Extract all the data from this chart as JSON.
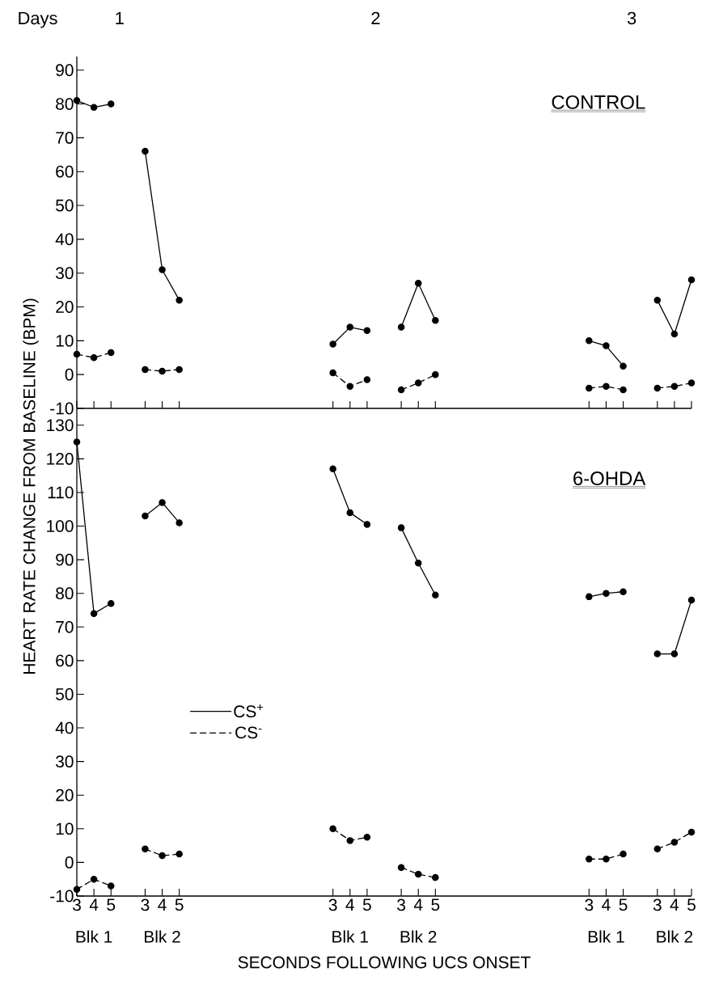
{
  "chart_data": [
    {
      "type": "line",
      "title": "CONTROL",
      "categories": [
        "3",
        "4",
        "5",
        null,
        "3",
        "4",
        "5",
        null,
        null,
        null,
        null,
        null,
        null,
        null,
        null,
        "3",
        "4",
        "5",
        null,
        "3",
        "4",
        "5",
        null,
        null,
        null,
        null,
        null,
        null,
        null,
        null,
        "3",
        "4",
        "5",
        null,
        "3",
        "4",
        "5"
      ],
      "series": [
        {
          "color": "#000000",
          "line_style": "solid",
          "values": [
            81,
            79,
            80,
            null,
            66,
            31,
            22,
            null,
            null,
            null,
            null,
            null,
            null,
            null,
            null,
            9,
            14,
            13,
            null,
            14,
            27,
            16,
            null,
            null,
            null,
            null,
            null,
            null,
            null,
            null,
            10,
            8.5,
            2.5,
            null,
            22,
            12,
            28
          ]
        },
        {
          "color": "#000000",
          "line_style": "dashed",
          "values": [
            6,
            5,
            6.5,
            null,
            1.5,
            1,
            1.5,
            null,
            null,
            null,
            null,
            null,
            null,
            null,
            null,
            0.5,
            -3.5,
            -1.5,
            null,
            -4.5,
            -2.5,
            0,
            null,
            null,
            null,
            null,
            null,
            null,
            null,
            null,
            -4,
            -3.5,
            -4.5,
            null,
            -4,
            -3.5,
            -2.5
          ]
        }
      ],
      "ylim": [
        -10,
        94
      ],
      "yticks": [
        -10,
        0,
        10,
        20,
        30,
        40,
        50,
        60,
        70,
        80,
        90
      ],
      "marker": "circle",
      "tick_labels": "y",
      "annotations": [
        "Days",
        "1",
        "2",
        "3"
      ]
    },
    {
      "type": "line",
      "title": "6-OHDA",
      "xlabel": "SECONDS FOLLOWING UCS ONSET",
      "ylabel": "HEART RATE CHANGE FROM BASELINE (BPM)",
      "categories": [
        "3",
        "4",
        "5",
        null,
        "3",
        "4",
        "5",
        null,
        null,
        null,
        null,
        null,
        null,
        null,
        null,
        "3",
        "4",
        "5",
        null,
        "3",
        "4",
        "5",
        null,
        null,
        null,
        null,
        null,
        null,
        null,
        null,
        "3",
        "4",
        "5",
        null,
        "3",
        "4",
        "5"
      ],
      "series": [
        {
          "name": "CS$^{+}$",
          "color": "#000000",
          "line_style": "solid",
          "values": [
            125,
            74,
            77,
            null,
            103,
            107,
            101,
            null,
            null,
            null,
            null,
            null,
            null,
            null,
            null,
            117,
            104,
            100.5,
            null,
            99.5,
            89,
            79.5,
            null,
            null,
            null,
            null,
            null,
            null,
            null,
            null,
            79,
            80,
            80.5,
            null,
            62,
            62,
            78
          ]
        },
        {
          "name": "CS$^{-}$",
          "color": "#000000",
          "line_style": "dashed",
          "values": [
            -8,
            -5,
            -7,
            null,
            4,
            2,
            2.5,
            null,
            null,
            null,
            null,
            null,
            null,
            null,
            null,
            10,
            6.5,
            7.5,
            null,
            -1.5,
            -3.5,
            -4.5,
            null,
            null,
            null,
            null,
            null,
            null,
            null,
            null,
            1,
            1,
            2.5,
            null,
            4,
            6,
            9
          ]
        }
      ],
      "ylim": [
        -10,
        135
      ],
      "yticks": [
        -10,
        0,
        10,
        20,
        30,
        40,
        50,
        60,
        70,
        80,
        90,
        100,
        110,
        120,
        130
      ],
      "marker": "circle",
      "legend": "left",
      "annotations": [
        "Blk 1",
        "Blk 2",
        "Blk 1",
        "Blk 2",
        "Blk 1",
        "Blk 2"
      ]
    }
  ]
}
